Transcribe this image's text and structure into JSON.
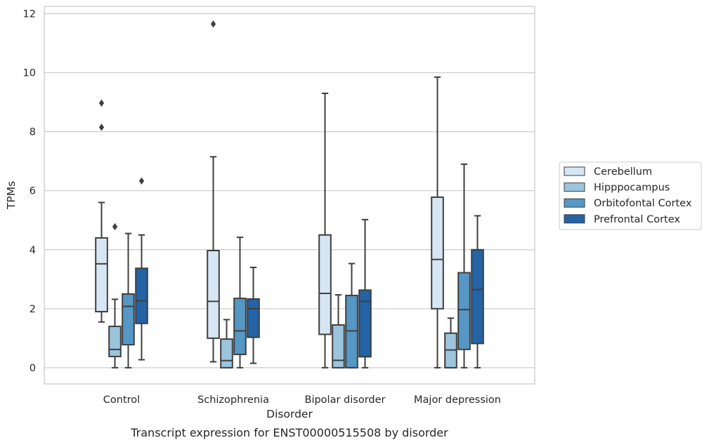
{
  "chart_data": {
    "type": "box",
    "caption": "Transcript expression for ENST00000515508 by disorder",
    "xlabel": "Disorder",
    "ylabel": "TPMs",
    "ylim": [
      -0.55,
      12.25
    ],
    "yticks": [
      0,
      2,
      4,
      6,
      8,
      10,
      12
    ],
    "grid": true,
    "legend_position": "right-center",
    "categories": [
      "Control",
      "Schizophrenia",
      "Bipolar disorder",
      "Major depression"
    ],
    "series": [
      {
        "name": "Cerebellum",
        "color": "#d7e6f3",
        "boxes": [
          {
            "whisker_low": 1.55,
            "q1": 1.9,
            "median": 3.52,
            "q3": 4.4,
            "whisker_high": 5.6,
            "outliers": [
              8.15,
              8.97
            ]
          },
          {
            "whisker_low": 0.2,
            "q1": 1.0,
            "median": 2.25,
            "q3": 3.97,
            "whisker_high": 7.15,
            "outliers": [
              11.65
            ]
          },
          {
            "whisker_low": 0.0,
            "q1": 1.13,
            "median": 2.52,
            "q3": 4.5,
            "whisker_high": 9.3,
            "outliers": []
          },
          {
            "whisker_low": 0.0,
            "q1": 2.0,
            "median": 3.67,
            "q3": 5.78,
            "whisker_high": 9.85,
            "outliers": []
          }
        ]
      },
      {
        "name": "Hipppocampus",
        "color": "#9cc4dc",
        "boxes": [
          {
            "whisker_low": 0.0,
            "q1": 0.38,
            "median": 0.62,
            "q3": 1.4,
            "whisker_high": 2.32,
            "outliers": [
              4.78
            ]
          },
          {
            "whisker_low": 0.0,
            "q1": 0.0,
            "median": 0.24,
            "q3": 0.97,
            "whisker_high": 1.63,
            "outliers": []
          },
          {
            "whisker_low": 0.0,
            "q1": 0.0,
            "median": 0.25,
            "q3": 1.45,
            "whisker_high": 2.47,
            "outliers": []
          },
          {
            "whisker_low": 0.0,
            "q1": 0.0,
            "median": 0.6,
            "q3": 1.17,
            "whisker_high": 1.68,
            "outliers": []
          }
        ]
      },
      {
        "name": "Orbitofontal Cortex",
        "color": "#5597c5",
        "boxes": [
          {
            "whisker_low": 0.0,
            "q1": 0.78,
            "median": 2.08,
            "q3": 2.5,
            "whisker_high": 4.55,
            "outliers": []
          },
          {
            "whisker_low": 0.0,
            "q1": 0.45,
            "median": 1.25,
            "q3": 2.35,
            "whisker_high": 4.42,
            "outliers": []
          },
          {
            "whisker_low": 0.0,
            "q1": 0.0,
            "median": 1.25,
            "q3": 2.45,
            "whisker_high": 3.53,
            "outliers": []
          },
          {
            "whisker_low": 0.0,
            "q1": 0.62,
            "median": 1.97,
            "q3": 3.22,
            "whisker_high": 6.9,
            "outliers": []
          }
        ]
      },
      {
        "name": "Prefrontal Cortex",
        "color": "#2363a6",
        "boxes": [
          {
            "whisker_low": 0.27,
            "q1": 1.5,
            "median": 2.27,
            "q3": 3.37,
            "whisker_high": 4.5,
            "outliers": [
              6.33
            ]
          },
          {
            "whisker_low": 0.15,
            "q1": 1.03,
            "median": 2.0,
            "q3": 2.33,
            "whisker_high": 3.4,
            "outliers": []
          },
          {
            "whisker_low": 0.0,
            "q1": 0.37,
            "median": 2.25,
            "q3": 2.63,
            "whisker_high": 5.02,
            "outliers": []
          },
          {
            "whisker_low": 0.0,
            "q1": 0.82,
            "median": 2.65,
            "q3": 4.0,
            "whisker_high": 5.15,
            "outliers": []
          }
        ]
      }
    ]
  }
}
